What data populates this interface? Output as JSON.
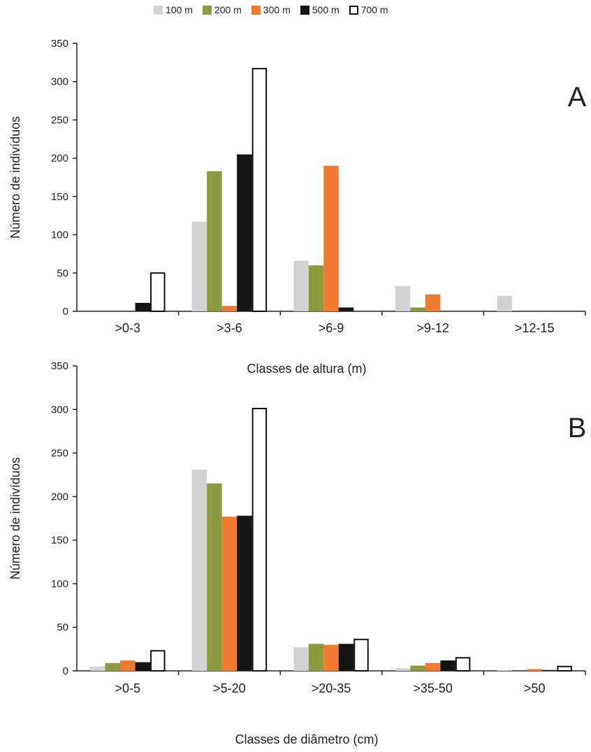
{
  "legend": [
    {
      "label": "100 m",
      "color": "#d3d3d3"
    },
    {
      "label": "200 m",
      "color": "#8b9a3e"
    },
    {
      "label": "300 m",
      "color": "#f07a30"
    },
    {
      "label": "500 m",
      "color": "#151515"
    },
    {
      "label": "700 m",
      "color": "#ffffff"
    }
  ],
  "chart_data": [
    {
      "type": "bar",
      "panel_label": "A",
      "categories": [
        ">0-3",
        ">3-6",
        ">6-9",
        ">9-12",
        ">12-15"
      ],
      "series": [
        {
          "name": "100 m",
          "color": "#d3d3d3",
          "values": [
            0,
            117,
            66,
            33,
            20
          ]
        },
        {
          "name": "200 m",
          "color": "#8b9a3e",
          "values": [
            0,
            183,
            60,
            5,
            0
          ]
        },
        {
          "name": "300 m",
          "color": "#f07a30",
          "values": [
            0,
            7,
            190,
            22,
            0
          ]
        },
        {
          "name": "500 m",
          "color": "#151515",
          "values": [
            11,
            205,
            5,
            0,
            0
          ]
        },
        {
          "name": "700 m",
          "color": "#ffffff",
          "values": [
            50,
            317,
            0,
            0,
            0
          ]
        }
      ],
      "xlabel": "Classes de altura (m)",
      "ylabel": "Número de indivíduos",
      "ylim": [
        0,
        350
      ],
      "yticks": [
        0,
        50,
        100,
        150,
        200,
        250,
        300,
        350
      ],
      "legend_position": "top"
    },
    {
      "type": "bar",
      "panel_label": "B",
      "categories": [
        ">0-5",
        ">5-20",
        ">20-35",
        ">35-50",
        ">50"
      ],
      "series": [
        {
          "name": "100 m",
          "color": "#d3d3d3",
          "values": [
            5,
            231,
            27,
            3,
            1
          ]
        },
        {
          "name": "200 m",
          "color": "#8b9a3e",
          "values": [
            9,
            215,
            31,
            6,
            0
          ]
        },
        {
          "name": "300 m",
          "color": "#f07a30",
          "values": [
            12,
            177,
            30,
            9,
            2
          ]
        },
        {
          "name": "500 m",
          "color": "#151515",
          "values": [
            10,
            178,
            31,
            12,
            1
          ]
        },
        {
          "name": "700 m",
          "color": "#ffffff",
          "values": [
            23,
            301,
            36,
            15,
            5
          ]
        }
      ],
      "xlabel": "Classes de diâmetro (cm)",
      "ylabel": "Número de indivíduos",
      "ylim": [
        0,
        350
      ],
      "yticks": [
        0,
        50,
        100,
        150,
        200,
        250,
        300,
        350
      ],
      "legend_position": "top"
    }
  ]
}
